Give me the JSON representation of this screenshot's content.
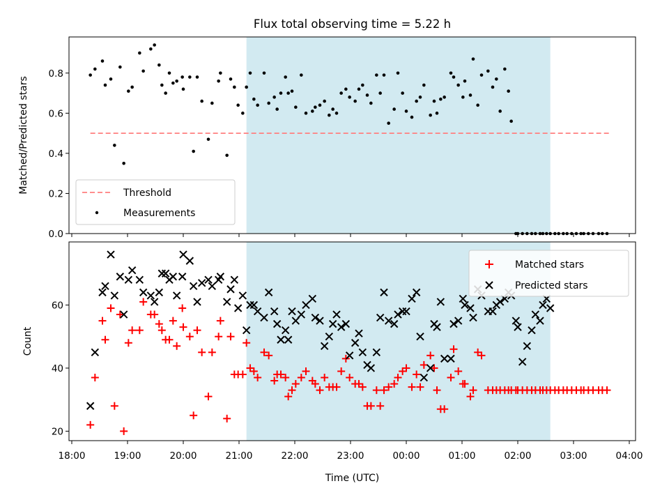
{
  "chart_data": [
    {
      "type": "scatter",
      "title": "Flux total observing time = 5.22 h",
      "xlabel": "",
      "ylabel": "Matched/Predicted stars",
      "ylim": [
        0,
        0.98
      ],
      "yticks": [
        "0.0",
        "0.2",
        "0.4",
        "0.6",
        "0.8"
      ],
      "ytick_values": [
        0,
        0.2,
        0.4,
        0.6,
        0.8
      ],
      "xlim": [
        "18:00",
        "04:00"
      ],
      "grid": false,
      "legend_position": "lower-left",
      "shaded_interval": [
        "21:08",
        "02:35"
      ],
      "threshold": {
        "name": "Threshold",
        "value": 0.5,
        "from": "18:20",
        "to": "03:40",
        "color": "#ff7f7f"
      },
      "series": [
        {
          "name": "Measurements",
          "color": "#000000",
          "marker": "dot",
          "x": [
            "18:20",
            "18:25",
            "18:33",
            "18:36",
            "18:42",
            "18:46",
            "18:52",
            "18:56",
            "19:01",
            "19:05",
            "19:13",
            "19:17",
            "19:25",
            "19:29",
            "19:34",
            "19:37",
            "19:41",
            "19:45",
            "19:49",
            "19:53",
            "19:59",
            "20:00",
            "20:07",
            "20:11",
            "20:15",
            "20:20",
            "20:27",
            "20:31",
            "20:38",
            "20:40",
            "20:47",
            "20:51",
            "20:55",
            "20:59",
            "21:04",
            "21:08",
            "21:12",
            "21:16",
            "21:20",
            "21:27",
            "21:32",
            "21:38",
            "21:41",
            "21:45",
            "21:50",
            "21:53",
            "21:57",
            "22:01",
            "22:07",
            "22:12",
            "22:19",
            "22:22",
            "22:27",
            "22:32",
            "22:37",
            "22:41",
            "22:45",
            "22:50",
            "22:55",
            "22:59",
            "23:05",
            "23:09",
            "23:13",
            "23:18",
            "23:22",
            "23:28",
            "23:32",
            "23:36",
            "23:41",
            "23:47",
            "23:51",
            "23:56",
            "00:00",
            "00:06",
            "00:11",
            "00:15",
            "00:19",
            "00:26",
            "00:30",
            "00:33",
            "00:37",
            "00:41",
            "00:48",
            "00:51",
            "00:56",
            "01:01",
            "01:03",
            "01:09",
            "01:12",
            "01:17",
            "01:21",
            "01:28",
            "01:33",
            "01:37",
            "01:41",
            "01:46",
            "01:50",
            "01:53",
            "01:58",
            "02:00",
            "02:05",
            "02:10",
            "02:15",
            "02:19",
            "02:24",
            "02:27",
            "02:31",
            "02:35",
            "02:40",
            "02:44",
            "02:49",
            "02:53",
            "02:58",
            "03:03",
            "03:08",
            "03:11",
            "03:16",
            "03:21",
            "03:27",
            "03:31",
            "03:36"
          ],
          "y": [
            0.79,
            0.82,
            0.86,
            0.74,
            0.77,
            0.44,
            0.83,
            0.35,
            0.71,
            0.73,
            0.9,
            0.81,
            0.92,
            0.94,
            0.84,
            0.74,
            0.7,
            0.8,
            0.75,
            0.76,
            0.78,
            0.72,
            0.78,
            0.41,
            0.78,
            0.66,
            0.47,
            0.65,
            0.76,
            0.8,
            0.39,
            0.77,
            0.73,
            0.64,
            0.6,
            0.73,
            0.8,
            0.67,
            0.64,
            0.8,
            0.65,
            0.68,
            0.62,
            0.7,
            0.78,
            0.7,
            0.71,
            0.63,
            0.79,
            0.6,
            0.61,
            0.63,
            0.64,
            0.66,
            0.59,
            0.62,
            0.6,
            0.7,
            0.72,
            0.68,
            0.66,
            0.72,
            0.74,
            0.69,
            0.65,
            0.79,
            0.7,
            0.79,
            0.55,
            0.62,
            0.8,
            0.7,
            0.61,
            0.58,
            0.66,
            0.68,
            0.74,
            0.59,
            0.66,
            0.6,
            0.67,
            0.68,
            0.8,
            0.78,
            0.74,
            0.68,
            0.76,
            0.69,
            0.87,
            0.64,
            0.79,
            0.81,
            0.73,
            0.77,
            0.61,
            0.82,
            0.71,
            0.56,
            0,
            0,
            0,
            0,
            0,
            0,
            0,
            0,
            0,
            0,
            0,
            0,
            0,
            0,
            0,
            0,
            0,
            0,
            0,
            0,
            0,
            0,
            0
          ]
        }
      ]
    },
    {
      "type": "scatter",
      "title": "",
      "xlabel": "Time (UTC)",
      "ylabel": "Count",
      "ylim": [
        17,
        80
      ],
      "yticks": [
        "20",
        "40",
        "60"
      ],
      "ytick_values": [
        20,
        40,
        60
      ],
      "xticks": [
        "18:00",
        "19:00",
        "20:00",
        "21:00",
        "22:00",
        "23:00",
        "00:00",
        "01:00",
        "02:00",
        "03:00",
        "04:00"
      ],
      "grid": false,
      "legend_position": "upper-right",
      "shaded_interval": [
        "21:08",
        "02:35"
      ],
      "series": [
        {
          "name": "Matched stars",
          "color": "#ff0000",
          "marker": "plus",
          "x": [
            "18:20",
            "18:25",
            "18:33",
            "18:36",
            "18:42",
            "18:46",
            "18:52",
            "18:56",
            "19:01",
            "19:05",
            "19:13",
            "19:17",
            "19:25",
            "19:29",
            "19:34",
            "19:37",
            "19:41",
            "19:45",
            "19:49",
            "19:53",
            "19:59",
            "20:00",
            "20:07",
            "20:11",
            "20:15",
            "20:20",
            "20:27",
            "20:31",
            "20:38",
            "20:40",
            "20:47",
            "20:51",
            "20:55",
            "20:59",
            "21:04",
            "21:08",
            "21:12",
            "21:16",
            "21:20",
            "21:27",
            "21:32",
            "21:38",
            "21:41",
            "21:45",
            "21:50",
            "21:53",
            "21:57",
            "22:01",
            "22:07",
            "22:12",
            "22:19",
            "22:22",
            "22:27",
            "22:32",
            "22:37",
            "22:41",
            "22:45",
            "22:50",
            "22:55",
            "22:59",
            "23:05",
            "23:09",
            "23:13",
            "23:18",
            "23:22",
            "23:28",
            "23:32",
            "23:36",
            "23:41",
            "23:47",
            "23:51",
            "23:56",
            "00:00",
            "00:06",
            "00:11",
            "00:15",
            "00:19",
            "00:26",
            "00:30",
            "00:33",
            "00:37",
            "00:41",
            "00:48",
            "00:51",
            "00:56",
            "01:01",
            "01:03",
            "01:09",
            "01:12",
            "01:17",
            "01:21",
            "01:28",
            "01:33",
            "01:37",
            "01:41",
            "01:46",
            "01:50",
            "01:53",
            "01:58",
            "02:00",
            "02:05",
            "02:10",
            "02:15",
            "02:19",
            "02:24",
            "02:27",
            "02:31",
            "02:35",
            "02:40",
            "02:44",
            "02:49",
            "02:53",
            "02:58",
            "03:03",
            "03:08",
            "03:11",
            "03:16",
            "03:21",
            "03:27",
            "03:31",
            "03:36"
          ],
          "y": [
            22,
            37,
            55,
            49,
            59,
            28,
            57,
            20,
            48,
            52,
            52,
            61,
            57,
            57,
            54,
            52,
            49,
            49,
            55,
            47,
            59,
            53,
            50,
            25,
            52,
            45,
            31,
            45,
            50,
            55,
            24,
            50,
            38,
            38,
            38,
            48,
            40,
            39,
            37,
            45,
            44,
            36,
            38,
            38,
            37,
            31,
            33,
            35,
            37,
            39,
            36,
            35,
            33,
            37,
            34,
            34,
            34,
            39,
            43,
            37,
            35,
            35,
            34,
            28,
            28,
            33,
            28,
            33,
            34,
            35,
            37,
            39,
            40,
            34,
            38,
            34,
            41,
            44,
            40,
            33,
            27,
            27,
            37,
            46,
            39,
            35,
            35,
            31,
            33,
            45,
            44,
            33,
            33,
            33,
            33,
            33,
            33,
            33,
            33,
            33,
            33,
            33,
            33,
            33,
            33,
            33,
            33,
            33,
            33,
            33,
            33,
            33,
            33,
            33,
            33,
            33,
            33,
            33,
            33,
            33,
            33
          ]
        },
        {
          "name": "Predicted stars",
          "color": "#000000",
          "marker": "x",
          "x": [
            "18:20",
            "18:25",
            "18:33",
            "18:36",
            "18:42",
            "18:46",
            "18:52",
            "18:56",
            "19:01",
            "19:05",
            "19:13",
            "19:17",
            "19:25",
            "19:29",
            "19:34",
            "19:37",
            "19:41",
            "19:45",
            "19:49",
            "19:53",
            "19:59",
            "20:00",
            "20:07",
            "20:11",
            "20:15",
            "20:20",
            "20:27",
            "20:31",
            "20:38",
            "20:40",
            "20:47",
            "20:51",
            "20:55",
            "20:59",
            "21:04",
            "21:08",
            "21:12",
            "21:16",
            "21:20",
            "21:27",
            "21:32",
            "21:38",
            "21:41",
            "21:45",
            "21:50",
            "21:53",
            "21:57",
            "22:01",
            "22:07",
            "22:12",
            "22:19",
            "22:22",
            "22:27",
            "22:32",
            "22:37",
            "22:41",
            "22:45",
            "22:50",
            "22:55",
            "22:59",
            "23:05",
            "23:09",
            "23:13",
            "23:18",
            "23:22",
            "23:28",
            "23:32",
            "23:36",
            "23:41",
            "23:47",
            "23:51",
            "23:56",
            "00:00",
            "00:06",
            "00:11",
            "00:15",
            "00:19",
            "00:26",
            "00:30",
            "00:33",
            "00:37",
            "00:41",
            "00:48",
            "00:51",
            "00:56",
            "01:01",
            "01:03",
            "01:09",
            "01:12",
            "01:17",
            "01:21",
            "01:28",
            "01:33",
            "01:37",
            "01:41",
            "01:46",
            "01:50",
            "01:53",
            "01:58",
            "02:00",
            "02:05",
            "02:10",
            "02:15",
            "02:19",
            "02:24",
            "02:27",
            "02:31",
            "02:35"
          ],
          "y": [
            28,
            45,
            64,
            66,
            76,
            63,
            69,
            57,
            68,
            71,
            68,
            64,
            63,
            61,
            64,
            70,
            70,
            68,
            69,
            63,
            69,
            76,
            74,
            66,
            61,
            67,
            68,
            66,
            68,
            69,
            61,
            65,
            68,
            59,
            63,
            52,
            60,
            60,
            58,
            56,
            64,
            58,
            54,
            49,
            52,
            49,
            58,
            55,
            57,
            60,
            62,
            56,
            55,
            47,
            50,
            54,
            57,
            53,
            54,
            44,
            48,
            51,
            45,
            41,
            40,
            45,
            56,
            64,
            55,
            54,
            57,
            58,
            58,
            62,
            64,
            50,
            37,
            40,
            54,
            53,
            61,
            43,
            43,
            54,
            55,
            62,
            60,
            59,
            56,
            65,
            63,
            58,
            58,
            60,
            61,
            62,
            64,
            63,
            55,
            53,
            42,
            47,
            52,
            57,
            55,
            60,
            62,
            59
          ]
        }
      ]
    }
  ]
}
